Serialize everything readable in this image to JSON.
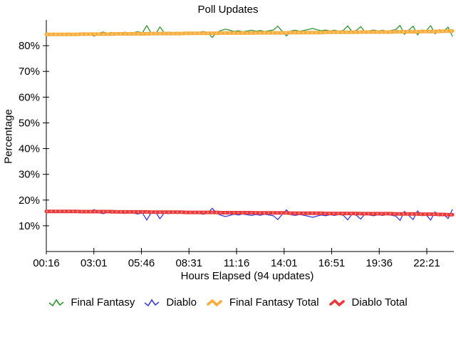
{
  "chart_data": {
    "type": "line",
    "title": "Poll Updates",
    "xlabel": "Hours Elapsed (94 updates)",
    "ylabel": "Percentage",
    "x_tick_labels": [
      "00:16",
      "03:01",
      "05:46",
      "08:31",
      "11:16",
      "14:01",
      "16:51",
      "19:36",
      "22:21"
    ],
    "y_ticks": [
      10,
      20,
      30,
      40,
      50,
      60,
      70,
      80
    ],
    "y_tick_labels": [
      "10%",
      "20%",
      "30%",
      "40%",
      "50%",
      "60%",
      "70%",
      "80%"
    ],
    "ylim": [
      0,
      90
    ],
    "updates": 94,
    "grid": "off",
    "legend_position": "bottom",
    "axis_color": "#000000",
    "background_color": "#ffffff",
    "series": [
      {
        "name": "Final Fantasy",
        "color": "#2E962E",
        "style": "thin",
        "values": [
          84.3,
          84.6,
          84.4,
          84.8,
          84.5,
          84.9,
          84.4,
          84.7,
          85.0,
          84.6,
          84.4,
          83.7,
          84.9,
          85.3,
          84.8,
          85.1,
          84.6,
          85.0,
          85.2,
          84.8,
          85.1,
          85.4,
          85.0,
          87.8,
          84.9,
          84.5,
          87.3,
          85.0,
          85.3,
          84.9,
          85.2,
          84.8,
          85.1,
          85.3,
          84.9,
          85.2,
          85.5,
          85.0,
          83.2,
          85.1,
          85.9,
          86.4,
          86.0,
          85.5,
          85.8,
          85.4,
          85.7,
          86.0,
          85.6,
          85.9,
          85.5,
          85.8,
          86.1,
          87.6,
          85.6,
          83.8,
          85.7,
          86.0,
          85.6,
          85.9,
          86.3,
          86.7,
          86.2,
          85.8,
          86.1,
          85.7,
          86.0,
          85.6,
          85.9,
          87.7,
          85.5,
          85.9,
          87.4,
          85.3,
          85.8,
          86.1,
          85.7,
          86.0,
          85.6,
          85.9,
          86.2,
          87.9,
          84.4,
          86.0,
          87.6,
          84.2,
          86.1,
          85.7,
          87.8,
          84.6,
          86.2,
          85.6,
          87.2,
          83.6
        ]
      },
      {
        "name": "Diablo",
        "color": "#3B3BDC",
        "style": "thin",
        "values": [
          15.7,
          15.4,
          15.6,
          15.2,
          15.5,
          15.1,
          15.6,
          15.3,
          15.0,
          15.4,
          15.6,
          16.3,
          15.1,
          14.7,
          15.2,
          14.9,
          15.4,
          15.0,
          14.8,
          15.2,
          14.9,
          14.6,
          15.0,
          12.2,
          15.1,
          15.5,
          12.7,
          15.0,
          14.7,
          15.1,
          14.8,
          15.2,
          14.9,
          14.7,
          15.1,
          14.8,
          14.5,
          15.0,
          16.8,
          14.9,
          14.1,
          13.6,
          14.0,
          14.5,
          14.2,
          14.6,
          14.3,
          14.0,
          14.4,
          14.1,
          14.5,
          14.2,
          13.9,
          12.4,
          14.4,
          16.2,
          14.3,
          14.0,
          14.4,
          14.1,
          13.7,
          13.3,
          13.8,
          14.2,
          13.9,
          14.3,
          14.0,
          14.4,
          14.1,
          12.3,
          14.5,
          14.1,
          12.6,
          14.7,
          14.2,
          13.9,
          14.3,
          14.0,
          14.4,
          14.1,
          13.8,
          12.1,
          15.6,
          14.0,
          12.4,
          15.8,
          13.9,
          14.3,
          12.2,
          15.4,
          13.8,
          14.4,
          12.8,
          16.4
        ]
      },
      {
        "name": "Final Fantasy Total",
        "color": "#F6AD3E",
        "color_light": "#FAC977",
        "style": "thick",
        "values": [
          84.4,
          84.4,
          84.4,
          84.4,
          84.4,
          84.4,
          84.4,
          84.4,
          84.5,
          84.5,
          84.5,
          84.5,
          84.5,
          84.5,
          84.5,
          84.5,
          84.6,
          84.6,
          84.6,
          84.6,
          84.6,
          84.6,
          84.6,
          84.6,
          84.7,
          84.7,
          84.7,
          84.7,
          84.7,
          84.7,
          84.7,
          84.7,
          84.8,
          84.8,
          84.8,
          84.8,
          84.8,
          84.8,
          84.8,
          84.8,
          84.9,
          84.9,
          84.9,
          84.9,
          84.9,
          84.9,
          84.9,
          84.9,
          85.0,
          85.0,
          85.0,
          85.0,
          85.0,
          85.0,
          85.0,
          85.0,
          85.1,
          85.1,
          85.1,
          85.1,
          85.1,
          85.1,
          85.1,
          85.1,
          85.2,
          85.2,
          85.2,
          85.2,
          85.2,
          85.2,
          85.2,
          85.2,
          85.3,
          85.3,
          85.3,
          85.3,
          85.3,
          85.3,
          85.3,
          85.3,
          85.4,
          85.4,
          85.4,
          85.4,
          85.4,
          85.4,
          85.5,
          85.5,
          85.5,
          85.5,
          85.6,
          85.6,
          85.7,
          85.7
        ]
      },
      {
        "name": "Diablo Total",
        "color": "#E83A3A",
        "color_light": "#F58080",
        "style": "thick",
        "values": [
          15.6,
          15.6,
          15.6,
          15.6,
          15.6,
          15.6,
          15.6,
          15.6,
          15.5,
          15.5,
          15.5,
          15.5,
          15.5,
          15.5,
          15.5,
          15.5,
          15.4,
          15.4,
          15.4,
          15.4,
          15.4,
          15.4,
          15.4,
          15.4,
          15.3,
          15.3,
          15.3,
          15.3,
          15.3,
          15.3,
          15.3,
          15.3,
          15.2,
          15.2,
          15.2,
          15.2,
          15.2,
          15.2,
          15.2,
          15.2,
          15.1,
          15.1,
          15.1,
          15.1,
          15.1,
          15.1,
          15.1,
          15.1,
          15.0,
          15.0,
          15.0,
          15.0,
          15.0,
          15.0,
          15.0,
          15.0,
          14.9,
          14.9,
          14.9,
          14.9,
          14.9,
          14.9,
          14.9,
          14.9,
          14.8,
          14.8,
          14.8,
          14.8,
          14.8,
          14.8,
          14.8,
          14.8,
          14.7,
          14.7,
          14.7,
          14.7,
          14.7,
          14.7,
          14.7,
          14.7,
          14.6,
          14.6,
          14.6,
          14.6,
          14.6,
          14.6,
          14.5,
          14.5,
          14.5,
          14.5,
          14.4,
          14.4,
          14.3,
          14.3
        ]
      }
    ]
  }
}
